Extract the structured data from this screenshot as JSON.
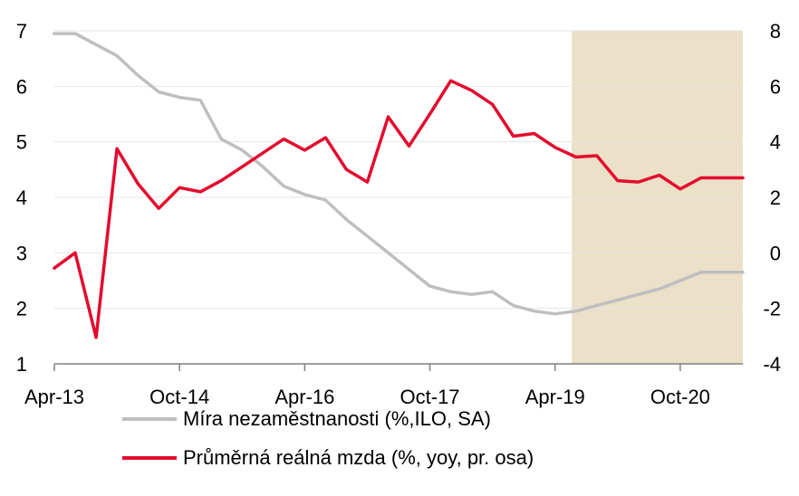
{
  "chart_data": {
    "type": "line",
    "categories": [
      "Apr-13",
      "Oct-14",
      "Apr-16",
      "Oct-17",
      "Apr-19",
      "Oct-20"
    ],
    "x_tick_labels": [
      "Apr-13",
      "Oct-14",
      "Apr-16",
      "Oct-17",
      "Apr-19",
      "Oct-20"
    ],
    "y_left": {
      "ticks": [
        "1",
        "2",
        "3",
        "4",
        "5",
        "6",
        "7"
      ],
      "lim": [
        1,
        7
      ]
    },
    "y_right": {
      "ticks": [
        "-4",
        "-2",
        "0",
        "2",
        "4",
        "6",
        "8"
      ],
      "lim": [
        -4,
        8
      ]
    },
    "grid": true,
    "shaded_region": {
      "x_start": 2019.2,
      "x_end": 2021.25,
      "color": "#ebe0c8"
    },
    "legend": {
      "placement": "bottom"
    },
    "series": [
      {
        "name": "Míra nezaměstnanosti (%,ILO, SA)",
        "axis": "left",
        "color": "#bfbfbf",
        "x": [
          2013.0,
          2013.25,
          2013.5,
          2013.75,
          2014.0,
          2014.25,
          2014.5,
          2014.75,
          2015.0,
          2015.25,
          2015.5,
          2015.75,
          2016.0,
          2016.25,
          2016.5,
          2016.75,
          2017.0,
          2017.25,
          2017.5,
          2017.75,
          2018.0,
          2018.25,
          2018.5,
          2018.75,
          2019.0,
          2019.25,
          2019.5,
          2019.75,
          2020.0,
          2020.25,
          2020.5,
          2020.75,
          2021.0,
          2021.25
        ],
        "values": [
          6.95,
          6.95,
          6.75,
          6.55,
          6.2,
          5.9,
          5.8,
          5.75,
          5.05,
          4.85,
          4.55,
          4.2,
          4.05,
          3.95,
          3.6,
          3.3,
          3.0,
          2.7,
          2.4,
          2.3,
          2.25,
          2.3,
          2.05,
          1.95,
          1.9,
          1.95,
          2.05,
          2.15,
          2.25,
          2.35,
          2.5,
          2.65,
          2.65,
          2.65
        ]
      },
      {
        "name": "Průměrná reálná mzda (%, yoy, pr. osa)",
        "axis": "right",
        "color": "#e30b2e",
        "x": [
          2013.0,
          2013.25,
          2013.5,
          2013.75,
          2014.0,
          2014.25,
          2014.5,
          2014.75,
          2015.0,
          2015.25,
          2015.5,
          2015.75,
          2016.0,
          2016.25,
          2016.5,
          2016.75,
          2017.0,
          2017.25,
          2017.5,
          2017.75,
          2018.0,
          2018.25,
          2018.5,
          2018.75,
          2019.0,
          2019.25,
          2019.5,
          2019.75,
          2020.0,
          2020.25,
          2020.5,
          2020.75,
          2021.0,
          2021.25
        ],
        "values": [
          -0.55,
          0.0,
          -3.05,
          3.75,
          2.5,
          1.6,
          2.35,
          2.2,
          2.6,
          3.1,
          3.6,
          4.1,
          3.7,
          4.15,
          3.0,
          2.55,
          4.9,
          3.85,
          5.0,
          6.2,
          5.85,
          5.35,
          4.2,
          4.3,
          3.8,
          3.45,
          3.5,
          2.6,
          2.55,
          2.8,
          2.3,
          2.7,
          2.7,
          2.7
        ]
      }
    ]
  }
}
